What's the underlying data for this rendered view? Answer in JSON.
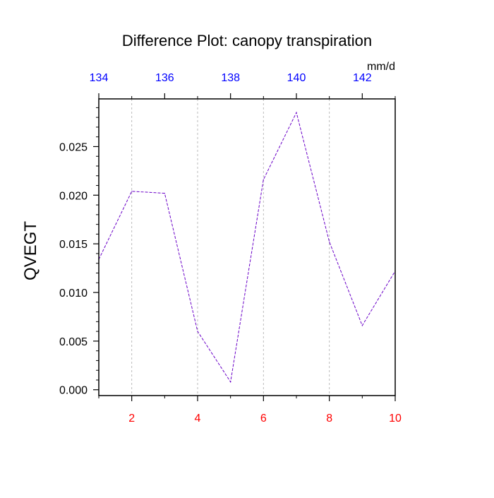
{
  "chart_data": {
    "type": "line",
    "title": "Difference Plot: canopy transpiration",
    "ylabel": "QVEGT",
    "units_label": "mm/d",
    "xlim": [
      1,
      10
    ],
    "ylim": [
      -0.0006,
      0.0299
    ],
    "x": [
      1,
      2,
      3,
      4,
      5,
      6,
      7,
      8,
      9,
      10
    ],
    "series": [
      {
        "values": [
          0.0134,
          0.0204,
          0.0202,
          0.006,
          0.0008,
          0.0216,
          0.0285,
          0.0152,
          0.0066,
          0.0122
        ]
      }
    ],
    "y_ticks": [
      "0.000",
      "0.005",
      "0.010",
      "0.015",
      "0.020",
      "0.025"
    ],
    "y_tick_values": [
      0.0,
      0.005,
      0.01,
      0.015,
      0.02,
      0.025
    ],
    "x_bottom_ticks": [
      "2",
      "4",
      "6",
      "8",
      "10"
    ],
    "x_bottom_tick_values": [
      2,
      4,
      6,
      8,
      10
    ],
    "x_top_ticks": [
      "134",
      "136",
      "138",
      "140",
      "142"
    ],
    "x_top_tick_values": [
      1,
      3,
      5,
      7,
      9
    ],
    "grid": "vertical dashed at major bottom ticks",
    "line_color": "#6a00c8",
    "bottom_tick_color": "#ff0000",
    "top_tick_color": "#0000ff"
  }
}
